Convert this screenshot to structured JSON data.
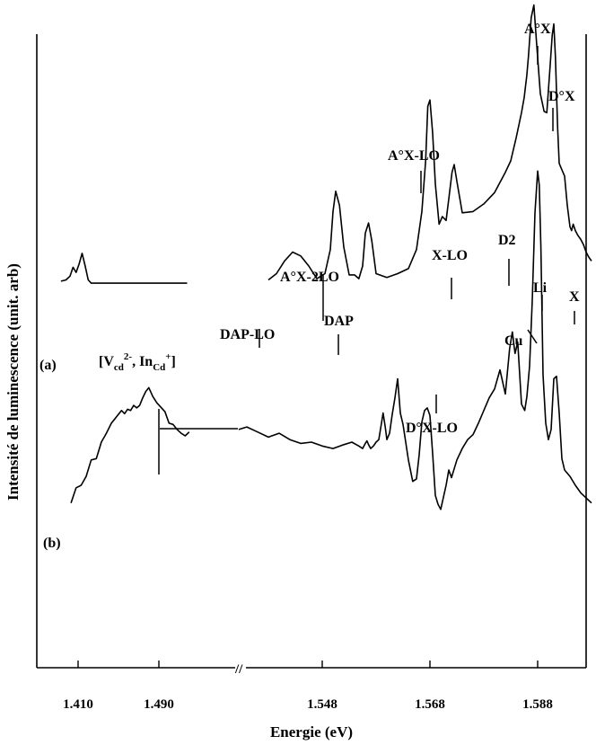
{
  "chart_data": {
    "type": "line",
    "title": "",
    "xlabel": "Energie (eV)",
    "ylabel": "Intensité de luminescence  (unit. arb)",
    "xlim_low_segment": [
      1.393,
      1.52
    ],
    "xlim_high_segment": [
      1.5315,
      1.5983
    ],
    "axis_break_symbol": "//",
    "ylim": [
      0,
      100
    ],
    "grid": false,
    "x_tick_labels": [
      "1.410",
      "1.490",
      "1.548",
      "1.568",
      "1.588"
    ],
    "x_ticks": [
      1.41,
      1.49,
      1.548,
      1.568,
      1.588
    ],
    "series": [
      {
        "name": "(a)",
        "x": [
          1.393,
          1.398,
          1.402,
          1.405,
          1.408,
          1.411,
          1.414,
          1.417,
          1.42,
          1.423,
          1.426,
          1.43,
          1.436,
          1.445,
          1.46,
          1.475,
          1.49,
          1.505,
          1.518,
          1.538,
          1.5395,
          1.541,
          1.5425,
          1.544,
          1.5455,
          1.547,
          1.5485,
          1.5495,
          1.55,
          1.5505,
          1.5512,
          1.552,
          1.553,
          1.554,
          1.5548,
          1.5555,
          1.556,
          1.5566,
          1.5572,
          1.558,
          1.56,
          1.562,
          1.564,
          1.5655,
          1.5665,
          1.5672,
          1.5676,
          1.568,
          1.5685,
          1.569,
          1.5697,
          1.5703,
          1.571,
          1.5715,
          1.5721,
          1.5725,
          1.573,
          1.574,
          1.576,
          1.578,
          1.58,
          1.582,
          1.583,
          1.584,
          1.5845,
          1.585,
          1.5855,
          1.586,
          1.5863,
          1.5868,
          1.5873,
          1.5878,
          1.5885,
          1.5892,
          1.5897,
          1.59,
          1.5903,
          1.5907,
          1.591,
          1.5913,
          1.5917,
          1.592,
          1.5925,
          1.593,
          1.5935,
          1.594,
          1.5943,
          1.5946,
          1.595,
          1.5955,
          1.596,
          1.5965,
          1.597,
          1.5975,
          1.598
        ],
        "y": [
          61.0,
          61.2,
          61.8,
          63.2,
          62.4,
          63.7,
          65.4,
          63.4,
          61.2,
          60.7,
          60.7,
          60.7,
          60.7,
          60.7,
          60.7,
          60.7,
          60.7,
          60.7,
          60.7,
          61.2,
          62.2,
          64.2,
          65.6,
          65.0,
          63.4,
          61.4,
          62.2,
          66.0,
          72.0,
          75.2,
          73.0,
          66.4,
          62.0,
          62.0,
          61.4,
          63.4,
          68.6,
          70.2,
          67.4,
          62.2,
          61.6,
          62.2,
          63.0,
          66.0,
          72.0,
          80.0,
          88.6,
          89.6,
          84.4,
          76.4,
          70.0,
          71.2,
          70.6,
          74.0,
          78.2,
          79.4,
          76.8,
          71.8,
          72.0,
          73.2,
          75.0,
          78.2,
          80.0,
          83.6,
          85.6,
          87.6,
          90.0,
          93.6,
          96.6,
          102.6,
          104.6,
          98.6,
          90.6,
          87.8,
          87.6,
          91.2,
          94.8,
          99.8,
          101.6,
          96.4,
          85.4,
          79.6,
          78.6,
          77.6,
          73.0,
          69.6,
          69.0,
          70.0,
          69.0,
          68.2,
          67.6,
          66.8,
          65.6,
          64.8,
          64.2
        ]
      },
      {
        "name": "(b)",
        "x": [
          1.403,
          1.408,
          1.413,
          1.418,
          1.423,
          1.428,
          1.433,
          1.438,
          1.443,
          1.448,
          1.453,
          1.456,
          1.459,
          1.462,
          1.465,
          1.468,
          1.471,
          1.474,
          1.477,
          1.48,
          1.484,
          1.488,
          1.492,
          1.496,
          1.5,
          1.504,
          1.508,
          1.512,
          1.516,
          1.52,
          1.5325,
          1.534,
          1.536,
          1.538,
          1.54,
          1.542,
          1.544,
          1.546,
          1.548,
          1.55,
          1.552,
          1.5535,
          1.5548,
          1.5555,
          1.556,
          1.5563,
          1.5566,
          1.557,
          1.5575,
          1.558,
          1.5585,
          1.559,
          1.5593,
          1.5597,
          1.56,
          1.5605,
          1.561,
          1.5615,
          1.562,
          1.5625,
          1.563,
          1.564,
          1.5648,
          1.5655,
          1.566,
          1.5665,
          1.567,
          1.5675,
          1.568,
          1.5685,
          1.569,
          1.5695,
          1.57,
          1.571,
          1.5715,
          1.572,
          1.573,
          1.574,
          1.575,
          1.576,
          1.577,
          1.578,
          1.579,
          1.58,
          1.581,
          1.582,
          1.5828,
          1.5833,
          1.5838,
          1.5843,
          1.585,
          1.5856,
          1.586,
          1.5865,
          1.587,
          1.5875,
          1.588,
          1.5883,
          1.5886,
          1.589,
          1.5895,
          1.59,
          1.5905,
          1.591,
          1.5915,
          1.592,
          1.5925,
          1.593,
          1.594,
          1.595,
          1.596,
          1.597,
          1.598
        ],
        "y": [
          26.0,
          28.4,
          28.8,
          30.2,
          32.8,
          33.0,
          35.6,
          37.0,
          38.6,
          39.6,
          40.6,
          40.1,
          40.8,
          40.6,
          41.4,
          41.0,
          41.4,
          42.6,
          43.6,
          44.2,
          42.8,
          41.8,
          41.1,
          40.4,
          38.6,
          38.4,
          37.6,
          37.0,
          36.6,
          37.2,
          37.6,
          38.0,
          37.2,
          36.4,
          37.0,
          36.0,
          35.4,
          35.6,
          35.0,
          34.6,
          35.2,
          35.6,
          35.0,
          34.6,
          35.4,
          35.8,
          35.2,
          34.6,
          35.0,
          35.6,
          36.0,
          38.6,
          40.2,
          38.0,
          36.0,
          37.0,
          40.0,
          42.6,
          45.6,
          40.2,
          38.4,
          32.8,
          29.4,
          29.8,
          33.6,
          38.8,
          40.6,
          41.0,
          39.8,
          33.8,
          27.2,
          25.8,
          25.0,
          28.8,
          31.2,
          30.0,
          32.8,
          34.6,
          36.0,
          36.8,
          38.6,
          40.6,
          42.6,
          44.0,
          47.0,
          43.2,
          50.4,
          53.0,
          49.6,
          51.4,
          41.6,
          40.6,
          42.8,
          47.6,
          58.0,
          71.8,
          78.4,
          76.2,
          66.4,
          46.2,
          38.6,
          36.0,
          37.6,
          45.6,
          46.0,
          40.2,
          33.0,
          31.2,
          30.2,
          28.8,
          27.6,
          26.8,
          26.0
        ]
      }
    ],
    "annotations": {
      "series_a_label": "(a)",
      "series_b_label": "(b)",
      "dap_lo": "DAP-LO",
      "ax_2lo": "A°X-2LO",
      "dap": "DAP",
      "ax_lo": "A°X-LO",
      "dx_lo": "D°X-LO",
      "x_lo": "X-LO",
      "d2": "D2",
      "ax": "A°X",
      "dx": "D°X",
      "x": "X",
      "cu": "Cu",
      "li": "Li",
      "complex_main": "[V",
      "complex_sub1": "cd",
      "complex_sup1": "2-",
      "complex_mid": ", In",
      "complex_sub2": "Cd",
      "complex_sup2": "+",
      "complex_end": "]"
    }
  }
}
